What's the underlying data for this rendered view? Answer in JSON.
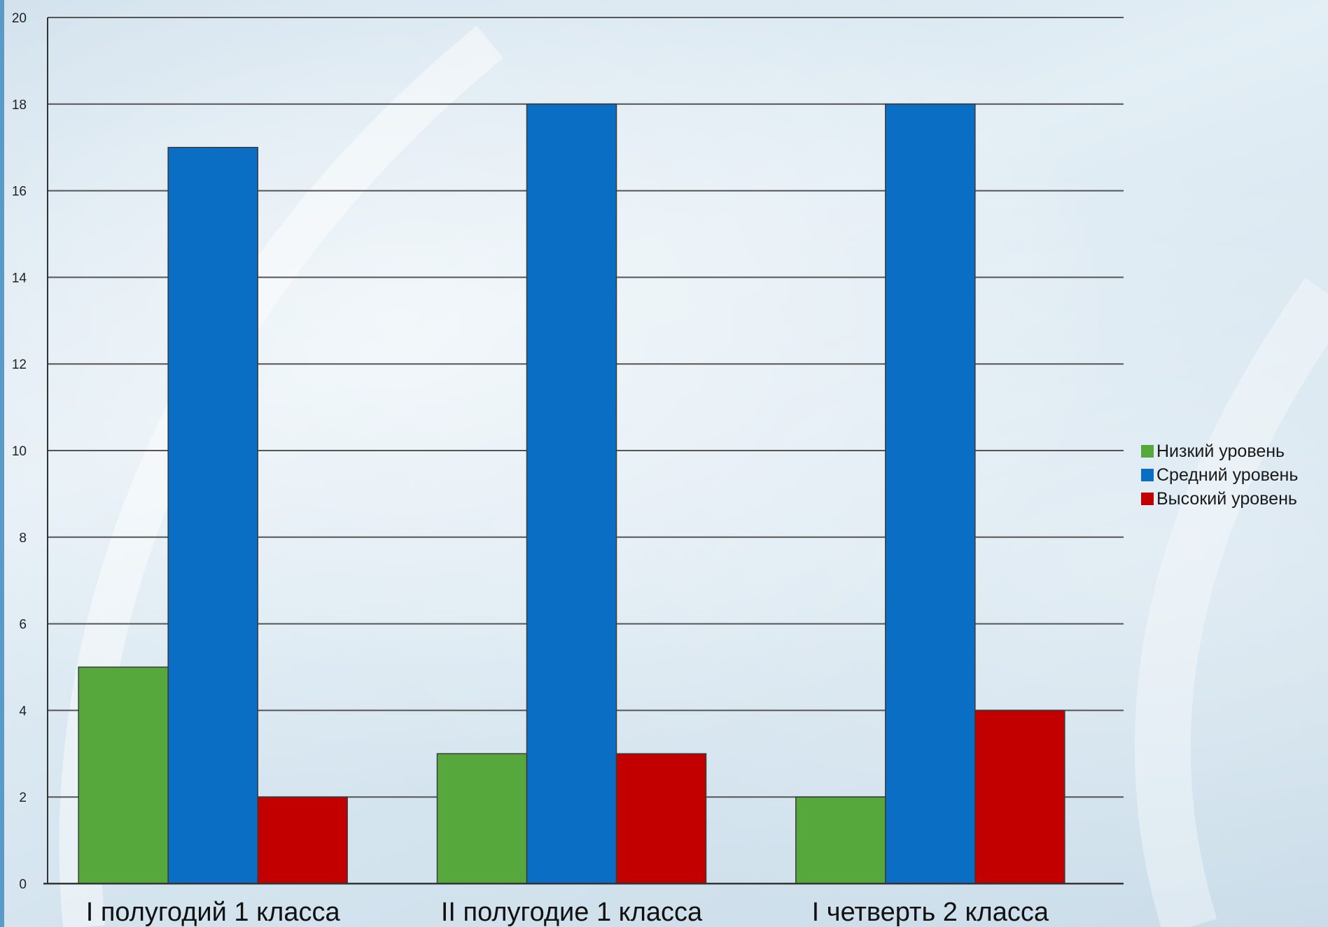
{
  "chart_data": {
    "type": "bar",
    "categories": [
      "I полугодий 1 класса",
      "II полугодие 1 класса",
      "I четверть 2 класса"
    ],
    "series": [
      {
        "name": "Низкий уровень",
        "values": [
          5,
          3,
          2
        ],
        "color": "#57a83c"
      },
      {
        "name": "Средний уровень",
        "values": [
          17,
          18,
          18
        ],
        "color": "#0a6fc4"
      },
      {
        "name": "Высокий уровень",
        "values": [
          2,
          3,
          4
        ],
        "color": "#c20000"
      }
    ],
    "title": "",
    "xlabel": "",
    "ylabel": "",
    "ylim": [
      0,
      20
    ],
    "yticks": [
      "0",
      "2",
      "4",
      "6",
      "8",
      "10",
      "12",
      "14",
      "16",
      "18",
      "20"
    ],
    "grid": true,
    "legend_position": "right"
  }
}
